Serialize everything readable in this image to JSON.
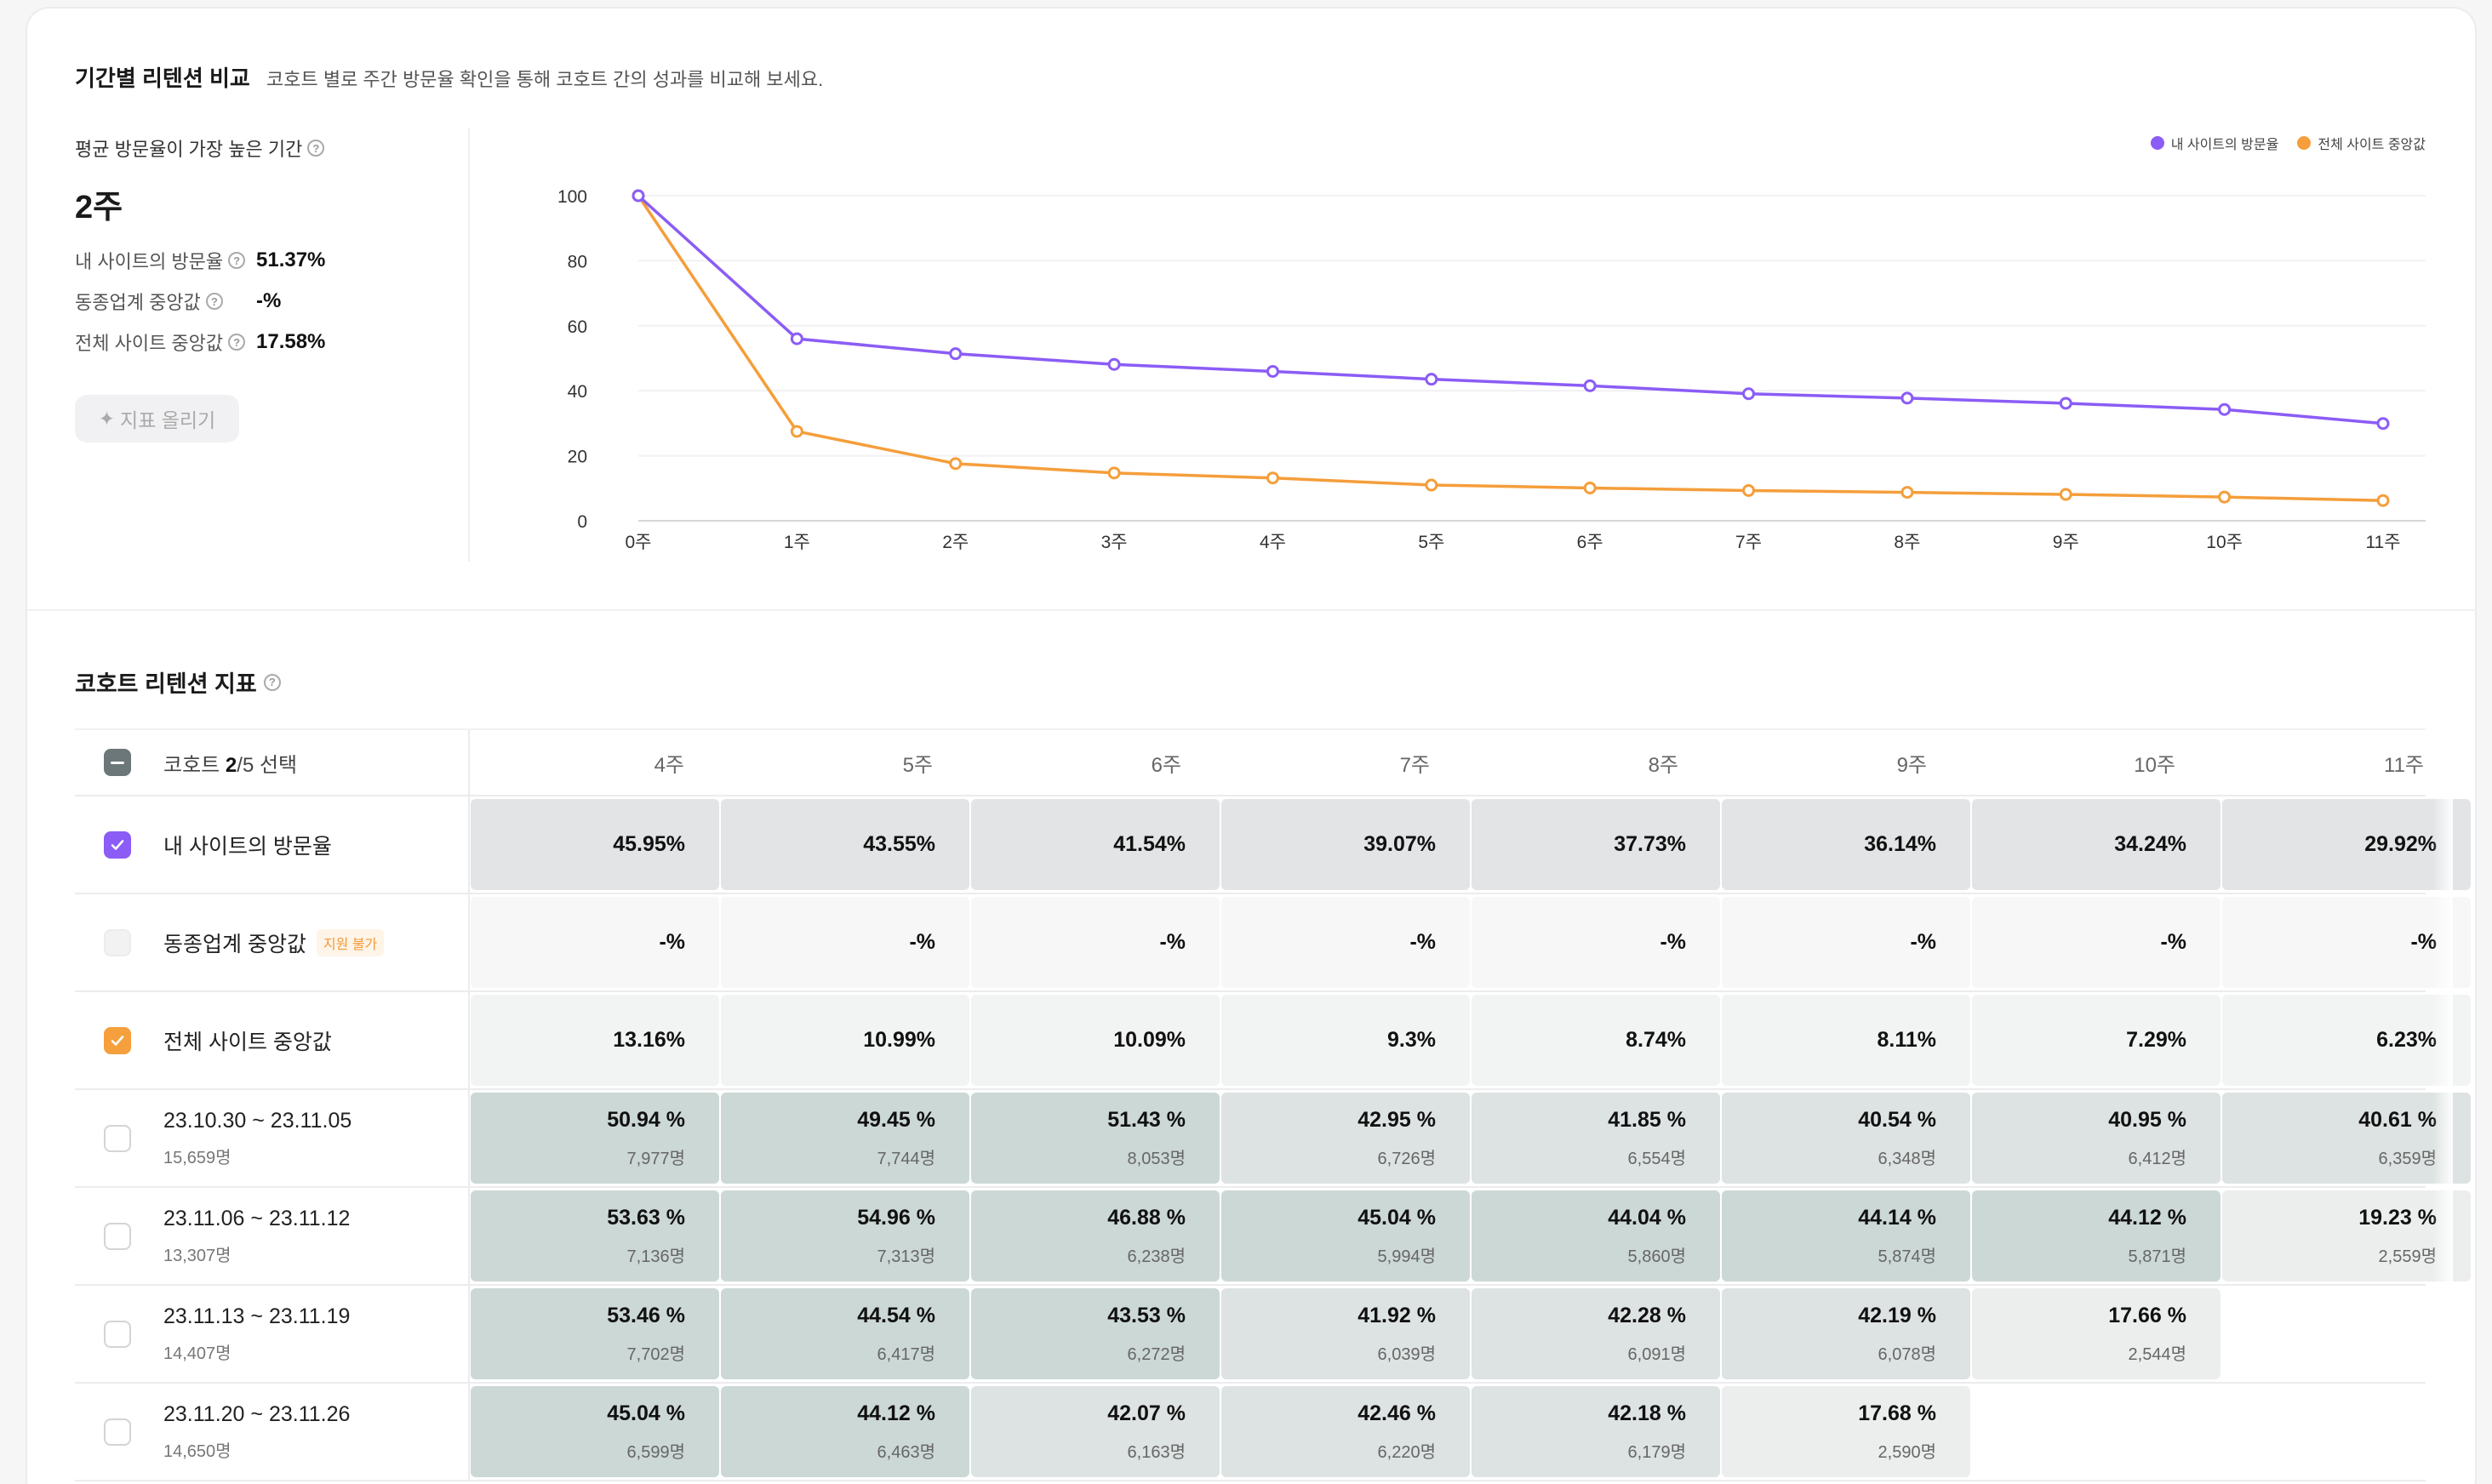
{
  "header": {
    "title": "기간별 리텐션 비교",
    "subtitle": "코호트 별로 주간 방문율 확인을 통해 코호트 간의 성과를 비교해 보세요."
  },
  "kpi": {
    "label": "평균 방문율이 가장 높은 기간",
    "value": "2주",
    "rows": [
      {
        "label": "내 사이트의 방문율",
        "value": "51.37%"
      },
      {
        "label": "동종업계 중앙값",
        "value": "-%"
      },
      {
        "label": "전체 사이트 중앙값",
        "value": "17.58%"
      }
    ],
    "upload_button": "지표 올리기"
  },
  "chart_data": {
    "type": "line",
    "x": [
      "0주",
      "1주",
      "2주",
      "3주",
      "4주",
      "5주",
      "6주",
      "7주",
      "8주",
      "9주",
      "10주",
      "11주"
    ],
    "ylim": [
      0,
      100
    ],
    "yticks": [
      0,
      20,
      40,
      60,
      80,
      100
    ],
    "legend_position": "top-right",
    "series": [
      {
        "name": "내 사이트의 방문율",
        "color": "#8b5cf6",
        "values": [
          100,
          56,
          51.4,
          48.1,
          45.95,
          43.55,
          41.54,
          39.07,
          37.73,
          36.14,
          34.24,
          29.92
        ]
      },
      {
        "name": "전체 사이트 중앙값",
        "color": "#f59e3b",
        "values": [
          100,
          27.5,
          17.58,
          14.7,
          13.16,
          10.99,
          10.09,
          9.3,
          8.74,
          8.11,
          7.29,
          6.23
        ]
      }
    ]
  },
  "table": {
    "title": "코호트 리텐션 지표",
    "header_select": {
      "prefix": "코호트 ",
      "selected": "2",
      "suffix": "/5 선택"
    },
    "weeks": [
      "4주",
      "5주",
      "6주",
      "7주",
      "8주",
      "9주",
      "10주",
      "11주"
    ],
    "rows": [
      {
        "name": "내 사이트의 방문율",
        "sub": "",
        "checkbox": "purple",
        "badge": "",
        "cells": [
          {
            "pct": "45.95%",
            "lvl": "main"
          },
          {
            "pct": "43.55%",
            "lvl": "main"
          },
          {
            "pct": "41.54%",
            "lvl": "main"
          },
          {
            "pct": "39.07%",
            "lvl": "main"
          },
          {
            "pct": "37.73%",
            "lvl": "main"
          },
          {
            "pct": "36.14%",
            "lvl": "main"
          },
          {
            "pct": "34.24%",
            "lvl": "main"
          },
          {
            "pct": "29.92%",
            "lvl": "main"
          }
        ]
      },
      {
        "name": "동종업계 중앙값",
        "sub": "",
        "checkbox": "disabled",
        "badge": "지원 불가",
        "cells": [
          {
            "pct": "-%",
            "lvl": "na"
          },
          {
            "pct": "-%",
            "lvl": "na"
          },
          {
            "pct": "-%",
            "lvl": "na"
          },
          {
            "pct": "-%",
            "lvl": "na"
          },
          {
            "pct": "-%",
            "lvl": "na"
          },
          {
            "pct": "-%",
            "lvl": "na"
          },
          {
            "pct": "-%",
            "lvl": "na"
          },
          {
            "pct": "-%",
            "lvl": "na"
          }
        ]
      },
      {
        "name": "전체 사이트 중앙값",
        "sub": "",
        "checkbox": "orange",
        "badge": "",
        "cells": [
          {
            "pct": "13.16%",
            "lvl": "tot"
          },
          {
            "pct": "10.99%",
            "lvl": "tot"
          },
          {
            "pct": "10.09%",
            "lvl": "tot"
          },
          {
            "pct": "9.3%",
            "lvl": "tot"
          },
          {
            "pct": "8.74%",
            "lvl": "tot"
          },
          {
            "pct": "8.11%",
            "lvl": "tot"
          },
          {
            "pct": "7.29%",
            "lvl": "tot"
          },
          {
            "pct": "6.23%",
            "lvl": "tot"
          }
        ]
      },
      {
        "name": "23.10.30 ~ 23.11.05",
        "sub": "15,659명",
        "checkbox": "empty",
        "badge": "",
        "cells": [
          {
            "pct": "50.94 %",
            "cnt": "7,977명",
            "lvl": "3"
          },
          {
            "pct": "49.45 %",
            "cnt": "7,744명",
            "lvl": "3"
          },
          {
            "pct": "51.43 %",
            "cnt": "8,053명",
            "lvl": "3"
          },
          {
            "pct": "42.95 %",
            "cnt": "6,726명",
            "lvl": "2"
          },
          {
            "pct": "41.85 %",
            "cnt": "6,554명",
            "lvl": "2"
          },
          {
            "pct": "40.54 %",
            "cnt": "6,348명",
            "lvl": "2"
          },
          {
            "pct": "40.95 %",
            "cnt": "6,412명",
            "lvl": "2"
          },
          {
            "pct": "40.61 %",
            "cnt": "6,359명",
            "lvl": "2"
          }
        ]
      },
      {
        "name": "23.11.06 ~ 23.11.12",
        "sub": "13,307명",
        "checkbox": "empty",
        "badge": "",
        "cells": [
          {
            "pct": "53.63 %",
            "cnt": "7,136명",
            "lvl": "3"
          },
          {
            "pct": "54.96 %",
            "cnt": "7,313명",
            "lvl": "3"
          },
          {
            "pct": "46.88 %",
            "cnt": "6,238명",
            "lvl": "3"
          },
          {
            "pct": "45.04 %",
            "cnt": "5,994명",
            "lvl": "3"
          },
          {
            "pct": "44.04 %",
            "cnt": "5,860명",
            "lvl": "3"
          },
          {
            "pct": "44.14 %",
            "cnt": "5,874명",
            "lvl": "3"
          },
          {
            "pct": "44.12 %",
            "cnt": "5,871명",
            "lvl": "3"
          },
          {
            "pct": "19.23 %",
            "cnt": "2,559명",
            "lvl": "1"
          }
        ]
      },
      {
        "name": "23.11.13 ~ 23.11.19",
        "sub": "14,407명",
        "checkbox": "empty",
        "badge": "",
        "cells": [
          {
            "pct": "53.46 %",
            "cnt": "7,702명",
            "lvl": "3"
          },
          {
            "pct": "44.54 %",
            "cnt": "6,417명",
            "lvl": "3"
          },
          {
            "pct": "43.53 %",
            "cnt": "6,272명",
            "lvl": "3"
          },
          {
            "pct": "41.92 %",
            "cnt": "6,039명",
            "lvl": "2"
          },
          {
            "pct": "42.28 %",
            "cnt": "6,091명",
            "lvl": "2"
          },
          {
            "pct": "42.19 %",
            "cnt": "6,078명",
            "lvl": "2"
          },
          {
            "pct": "17.66 %",
            "cnt": "2,544명",
            "lvl": "1"
          },
          {
            "pct": "",
            "cnt": "",
            "lvl": "0"
          }
        ]
      },
      {
        "name": "23.11.20 ~ 23.11.26",
        "sub": "14,650명",
        "checkbox": "empty",
        "badge": "",
        "cells": [
          {
            "pct": "45.04 %",
            "cnt": "6,599명",
            "lvl": "3"
          },
          {
            "pct": "44.12 %",
            "cnt": "6,463명",
            "lvl": "3"
          },
          {
            "pct": "42.07 %",
            "cnt": "6,163명",
            "lvl": "2"
          },
          {
            "pct": "42.46 %",
            "cnt": "6,220명",
            "lvl": "2"
          },
          {
            "pct": "42.18 %",
            "cnt": "6,179명",
            "lvl": "2"
          },
          {
            "pct": "17.68 %",
            "cnt": "2,590명",
            "lvl": "1"
          },
          {
            "pct": "",
            "cnt": "",
            "lvl": "0"
          },
          {
            "pct": "",
            "cnt": "",
            "lvl": "0"
          }
        ]
      }
    ]
  }
}
